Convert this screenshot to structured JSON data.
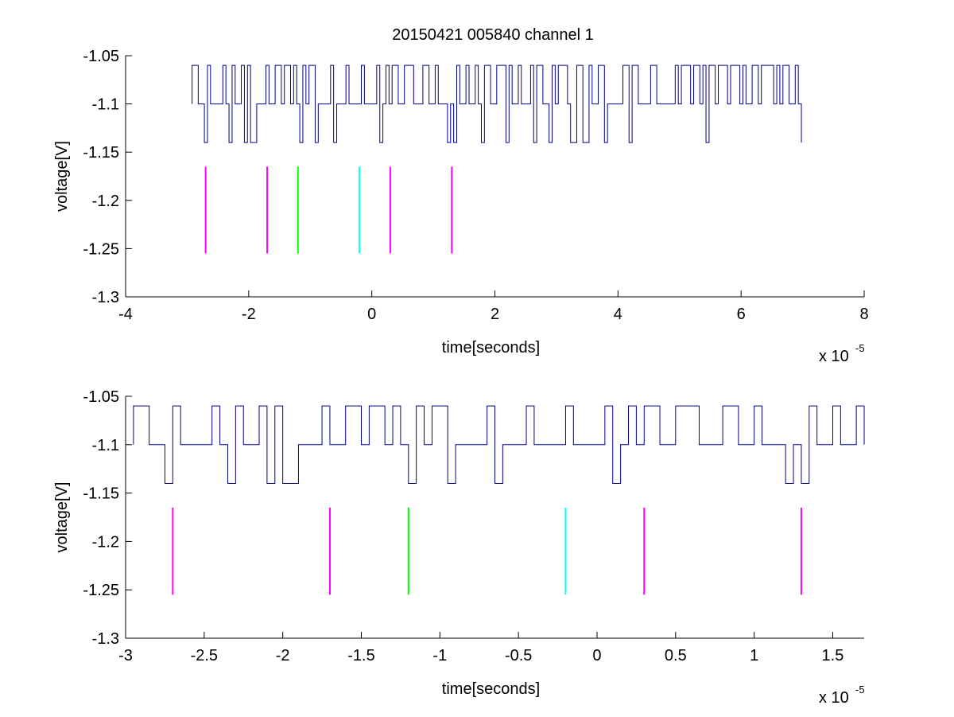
{
  "title": "20150421 005840 channel 1",
  "colors": {
    "trace": "#00008b",
    "magenta": "#ff00ff",
    "green": "#00ff00",
    "cyan": "#00ffff",
    "axes": "#000000",
    "background": "#ffffff"
  },
  "chart_data": [
    {
      "type": "line",
      "xlabel": "time[seconds]",
      "ylabel": "voltage[V]",
      "xlim": [
        -4,
        8
      ],
      "ylim": [
        -1.3,
        -1.05
      ],
      "x_scale_label": "x 10",
      "x_scale_exponent": "-5",
      "xticks": [
        -4,
        -2,
        0,
        2,
        4,
        6,
        8
      ],
      "xtick_labels": [
        "-4",
        "-2",
        "0",
        "2",
        "4",
        "6",
        "8"
      ],
      "yticks": [
        -1.05,
        -1.1,
        -1.15,
        -1.2,
        -1.25,
        -1.3
      ],
      "ytick_labels": [
        "-1.05",
        "-1.1",
        "-1.15",
        "-1.2",
        "-1.25",
        "-1.3"
      ],
      "grid": false,
      "series": [
        {
          "kind": "trace",
          "x_range": [
            -2.92,
            7.0
          ],
          "levels": [
            -1.06,
            -1.1,
            -1.14
          ],
          "baseline": -1.1
        }
      ],
      "markers": [
        {
          "x": -2.7,
          "y": [
            -1.255,
            -1.165
          ],
          "color": "magenta"
        },
        {
          "x": -1.7,
          "y": [
            -1.255,
            -1.165
          ],
          "color": "magenta"
        },
        {
          "x": -1.2,
          "y": [
            -1.255,
            -1.165
          ],
          "color": "green"
        },
        {
          "x": -0.2,
          "y": [
            -1.255,
            -1.165
          ],
          "color": "cyan"
        },
        {
          "x": 0.3,
          "y": [
            -1.255,
            -1.165
          ],
          "color": "magenta"
        },
        {
          "x": 1.3,
          "y": [
            -1.255,
            -1.165
          ],
          "color": "magenta"
        }
      ]
    },
    {
      "type": "line",
      "xlabel": "time[seconds]",
      "ylabel": "voltage[V]",
      "xlim": [
        -3.0,
        1.7
      ],
      "ylim": [
        -1.3,
        -1.05
      ],
      "x_scale_label": "x 10",
      "x_scale_exponent": "-5",
      "xticks": [
        -3,
        -2.5,
        -2,
        -1.5,
        -1,
        -0.5,
        0,
        0.5,
        1,
        1.5
      ],
      "xtick_labels": [
        "-3",
        "-2.5",
        "-2",
        "-1.5",
        "-1",
        "-0.5",
        "0",
        "0.5",
        "1",
        "1.5"
      ],
      "yticks": [
        -1.05,
        -1.1,
        -1.15,
        -1.2,
        -1.25,
        -1.3
      ],
      "ytick_labels": [
        "-1.05",
        "-1.1",
        "-1.15",
        "-1.2",
        "-1.25",
        "-1.3"
      ],
      "grid": false,
      "series": [
        {
          "kind": "trace",
          "x_range": [
            -2.95,
            1.7
          ],
          "levels": [
            -1.06,
            -1.1,
            -1.14
          ],
          "baseline": -1.1
        }
      ],
      "markers": [
        {
          "x": -2.7,
          "y": [
            -1.255,
            -1.165
          ],
          "color": "magenta"
        },
        {
          "x": -1.7,
          "y": [
            -1.255,
            -1.165
          ],
          "color": "magenta"
        },
        {
          "x": -1.2,
          "y": [
            -1.255,
            -1.165
          ],
          "color": "green"
        },
        {
          "x": -0.2,
          "y": [
            -1.255,
            -1.165
          ],
          "color": "cyan"
        },
        {
          "x": 0.3,
          "y": [
            -1.255,
            -1.165
          ],
          "color": "magenta"
        },
        {
          "x": 1.3,
          "y": [
            -1.255,
            -1.165
          ],
          "color": "magenta"
        }
      ]
    }
  ]
}
